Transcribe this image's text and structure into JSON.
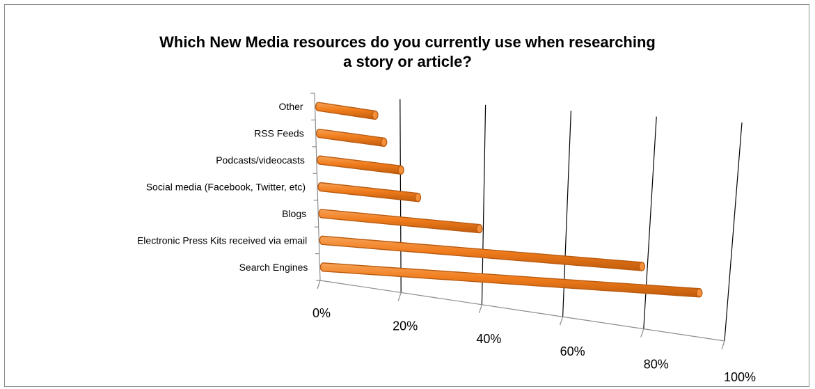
{
  "chart_data": {
    "type": "bar",
    "orientation": "horizontal",
    "style": "3d-cylinder",
    "title": "Which New Media resources do you currently use when researching a story or article?",
    "title_lines": [
      "Which New Media resources do you currently use when researching",
      "a story or article?"
    ],
    "categories": [
      "Other",
      "RSS Feeds",
      "Podcasts/videocasts",
      "Social media (Facebook, Twitter, etc)",
      "Blogs",
      "Electronic Press Kits received via email",
      "Search Engines"
    ],
    "values": [
      14,
      16,
      20,
      24,
      39,
      79,
      93
    ],
    "xlim": [
      0,
      100
    ],
    "xticks": [
      "0%",
      "20%",
      "40%",
      "60%",
      "80%",
      "100%"
    ],
    "grid": true,
    "legend": "none",
    "bar_color": "#f07c1c",
    "bar_edge_color": "#b85a10"
  }
}
